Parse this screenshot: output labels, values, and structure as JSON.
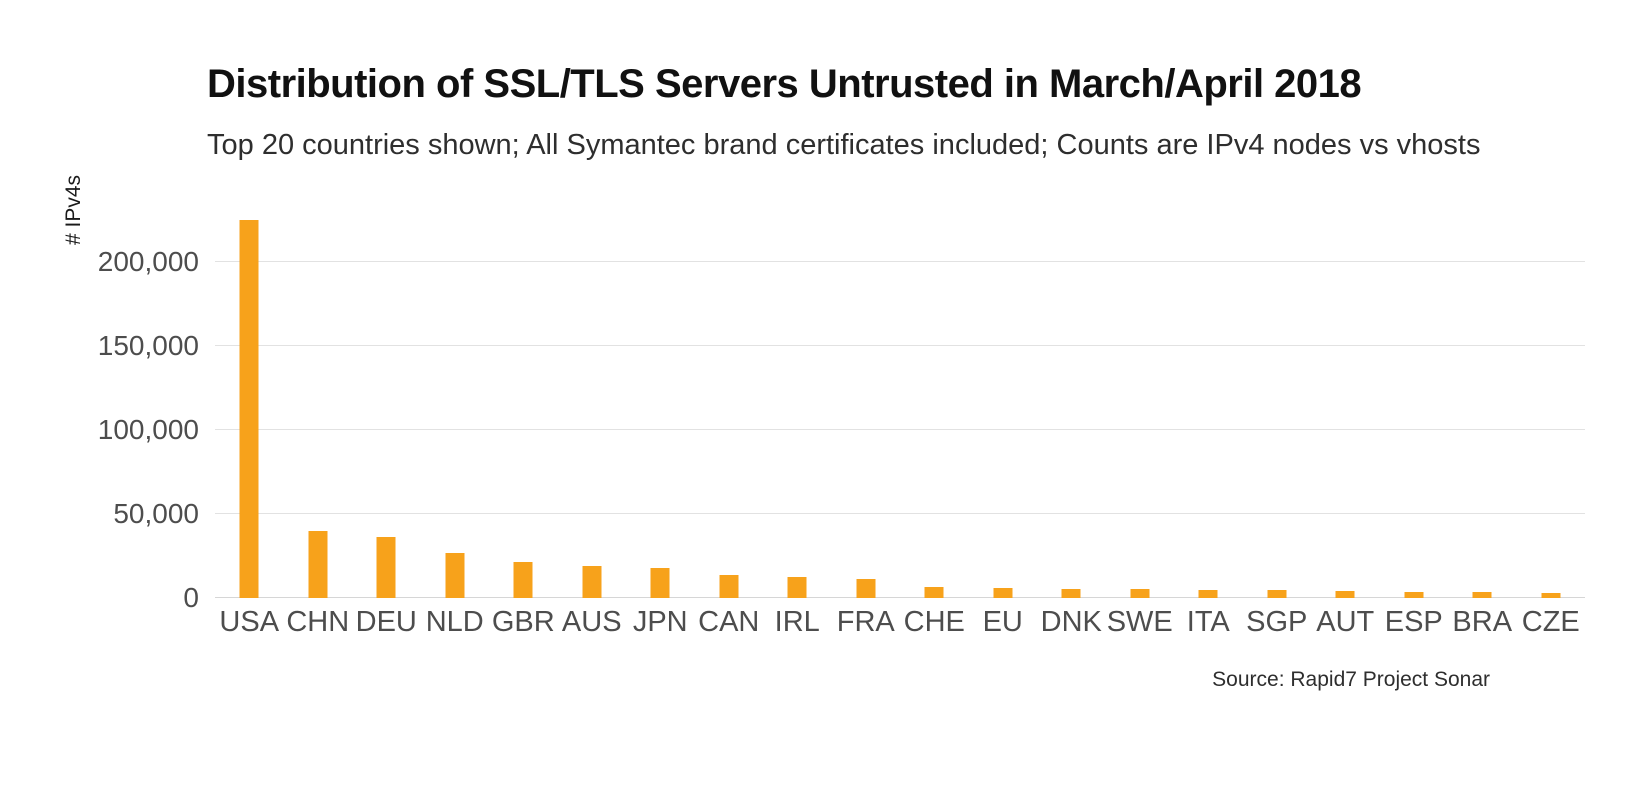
{
  "chart_data": {
    "type": "bar",
    "title": "Distribution of SSL/TLS Servers Untrusted in March/April 2018",
    "subtitle": "Top 20 countries shown; All Symantec brand certificates included; Counts are IPv4 nodes vs vhosts",
    "ylabel": "# IPv4s",
    "xlabel": "",
    "source": "Source: Rapid7 Project Sonar",
    "categories": [
      "USA",
      "CHN",
      "DEU",
      "NLD",
      "GBR",
      "AUS",
      "JPN",
      "CAN",
      "IRL",
      "FRA",
      "CHE",
      "EU",
      "DNK",
      "SWE",
      "ITA",
      "SGP",
      "AUT",
      "ESP",
      "BRA",
      "CZE"
    ],
    "values": [
      225000,
      40000,
      36500,
      26500,
      21500,
      19000,
      18000,
      13500,
      12500,
      11500,
      6500,
      6000,
      5500,
      5200,
      4800,
      4800,
      4200,
      3800,
      3800,
      3200
    ],
    "yticks": [
      0,
      50000,
      100000,
      150000,
      200000
    ],
    "ytick_labels": [
      "0",
      "50,000",
      "100,000",
      "150,000",
      "200,000"
    ],
    "ylim": [
      0,
      232000
    ],
    "bar_color": "#F7A21B",
    "grid": true,
    "legend": false
  }
}
